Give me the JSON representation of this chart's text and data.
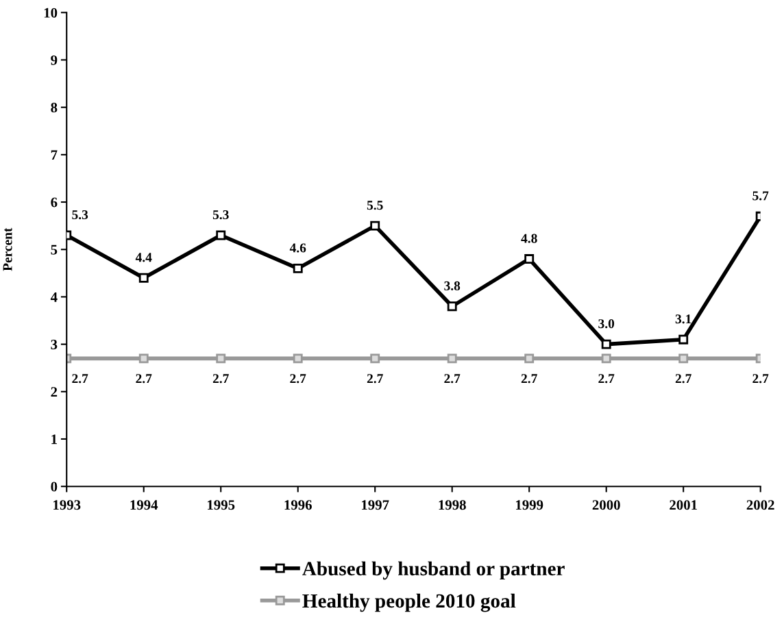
{
  "chart_data": {
    "type": "line",
    "ylabel": "Percent",
    "categories": [
      "1993",
      "1994",
      "1995",
      "1996",
      "1997",
      "1998",
      "1999",
      "2000",
      "2001",
      "2002"
    ],
    "series": [
      {
        "name": "Abused by husband or partner",
        "color": "#000000",
        "values": [
          5.3,
          4.4,
          5.3,
          4.6,
          5.5,
          3.8,
          4.8,
          3.0,
          3.1,
          5.7
        ],
        "value_labels": [
          "5.3",
          "4.4",
          "5.3",
          "4.6",
          "5.5",
          "3.8",
          "4.8",
          "3.0",
          "3.1",
          "5.7"
        ]
      },
      {
        "name": "Healthy people 2010 goal",
        "color": "#999999",
        "values": [
          2.7,
          2.7,
          2.7,
          2.7,
          2.7,
          2.7,
          2.7,
          2.7,
          2.7,
          2.7
        ],
        "value_labels": [
          "2.7",
          "2.7",
          "2.7",
          "2.7",
          "2.7",
          "2.7",
          "2.7",
          "2.7",
          "2.7",
          "2.7"
        ]
      }
    ],
    "ylim": [
      0,
      10
    ],
    "yticks": [
      0,
      1,
      2,
      3,
      4,
      5,
      6,
      7,
      8,
      9,
      10
    ],
    "grid": false,
    "legend": "bottom",
    "marker": "square",
    "line_style": "solid"
  }
}
